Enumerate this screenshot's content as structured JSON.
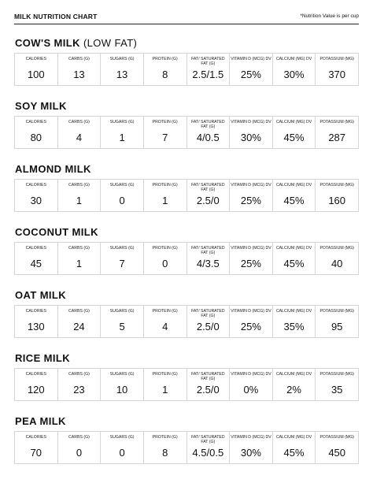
{
  "header": {
    "title": "MILK NUTRITION CHART",
    "note": "*Nutrition Value is per cup"
  },
  "columns": [
    "CALORIES",
    "CARBS (G)",
    "SUGARS (G)",
    "PROTEIN (G)",
    "FAT/ SATURATED FAT (G)",
    "VITAMIN D (MCG) DV",
    "CALCIUM (MG) DV",
    "POTASSIUM (MG)"
  ],
  "sections": [
    {
      "name": "COW'S MILK",
      "suffix": "(LOW FAT)",
      "values": [
        "100",
        "13",
        "13",
        "8",
        "2.5/1.5",
        "25%",
        "30%",
        "370"
      ]
    },
    {
      "name": "SOY MILK",
      "suffix": "",
      "values": [
        "80",
        "4",
        "1",
        "7",
        "4/0.5",
        "30%",
        "45%",
        "287"
      ]
    },
    {
      "name": "ALMOND MILK",
      "suffix": "",
      "values": [
        "30",
        "1",
        "0",
        "1",
        "2.5/0",
        "25%",
        "45%",
        "160"
      ]
    },
    {
      "name": "COCONUT MILK",
      "suffix": "",
      "values": [
        "45",
        "1",
        "7",
        "0",
        "4/3.5",
        "25%",
        "45%",
        "40"
      ]
    },
    {
      "name": "OAT MILK",
      "suffix": "",
      "values": [
        "130",
        "24",
        "5",
        "4",
        "2.5/0",
        "25%",
        "35%",
        "95"
      ]
    },
    {
      "name": "RICE MILK",
      "suffix": "",
      "values": [
        "120",
        "23",
        "10",
        "1",
        "2.5/0",
        "0%",
        "2%",
        "35"
      ]
    },
    {
      "name": "PEA MILK",
      "suffix": "",
      "values": [
        "70",
        "0",
        "0",
        "8",
        "4.5/0.5",
        "30%",
        "45%",
        "450"
      ]
    }
  ]
}
